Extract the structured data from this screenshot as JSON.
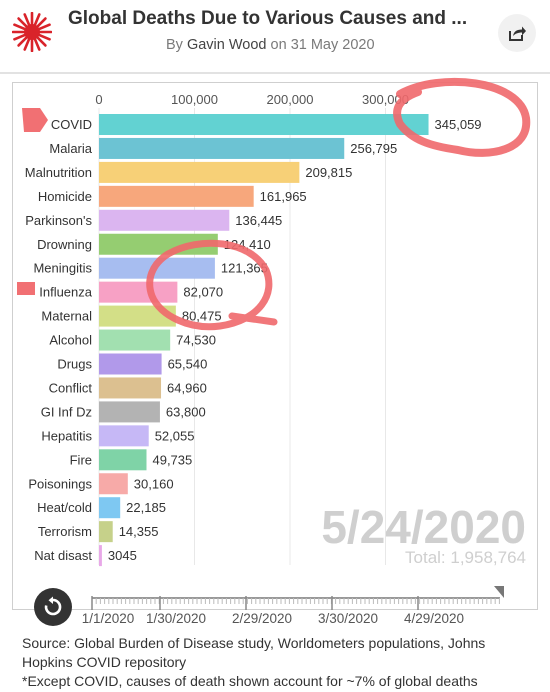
{
  "header": {
    "title": "Global Deaths Due to Various Causes and ...",
    "by_prefix": "By",
    "author": "Gavin Wood",
    "date_prefix": "on",
    "date": "31 May 2020",
    "share_icon": "share-icon",
    "logo_icon": "starburst-logo-icon"
  },
  "chart_data": {
    "type": "bar",
    "orientation": "horizontal",
    "x_ticks": [
      "0",
      "100,000",
      "200,000",
      "300,000"
    ],
    "xlim": [
      0,
      330000
    ],
    "categories": [
      "COVID",
      "Malaria",
      "Malnutrition",
      "Homicide",
      "Parkinson's",
      "Drowning",
      "Meningitis",
      "Influenza",
      "Maternal",
      "Alcohol",
      "Drugs",
      "Conflict",
      "GI Inf Dz",
      "Hepatitis",
      "Fire",
      "Poisonings",
      "Heat/cold",
      "Terrorism",
      "Nat disast"
    ],
    "values": [
      345059,
      256795,
      209815,
      161965,
      136445,
      124410,
      121365,
      82070,
      80475,
      74530,
      65540,
      64960,
      63800,
      52055,
      49735,
      30160,
      22185,
      14355,
      3045
    ],
    "labels": [
      "345,059",
      "256,795",
      "209,815",
      "161,965",
      "136,445",
      "124,410",
      "121,365",
      "82,070",
      "80,475",
      "74,530",
      "65,540",
      "64,960",
      "63,800",
      "52,055",
      "49,735",
      "30,160",
      "22,185",
      "14,355",
      "3045"
    ],
    "colors": [
      "#62d2d2",
      "#6cc3d3",
      "#f7d077",
      "#f7a77c",
      "#dbb5f0",
      "#95cd71",
      "#a7bdf0",
      "#f7a1c5",
      "#d3df87",
      "#a2e0b0",
      "#b199ea",
      "#dcc090",
      "#b3b3b3",
      "#c6b8f6",
      "#7fd3a7",
      "#f7aaa8",
      "#7ec8f2",
      "#c6d18a",
      "#e8a8e8"
    ],
    "current_date": "5/24/2020",
    "total_label": "Total: 1,958,764",
    "timeline_labels": [
      "1/1/2020",
      "1/30/2020",
      "2/29/2020",
      "3/30/2020",
      "4/29/2020"
    ],
    "timeline_progress": 1.0
  },
  "controls": {
    "replay_icon": "replay-icon"
  },
  "footer": {
    "source_line1": "Source: Global Burden of Disease study, Worldometers populations, Johns",
    "source_line2": "Hopkins COVID repository",
    "note": "*Except COVID, causes of death shown account for ~7% of global deaths"
  },
  "annotations": {
    "ink_color": "#f0686b"
  }
}
